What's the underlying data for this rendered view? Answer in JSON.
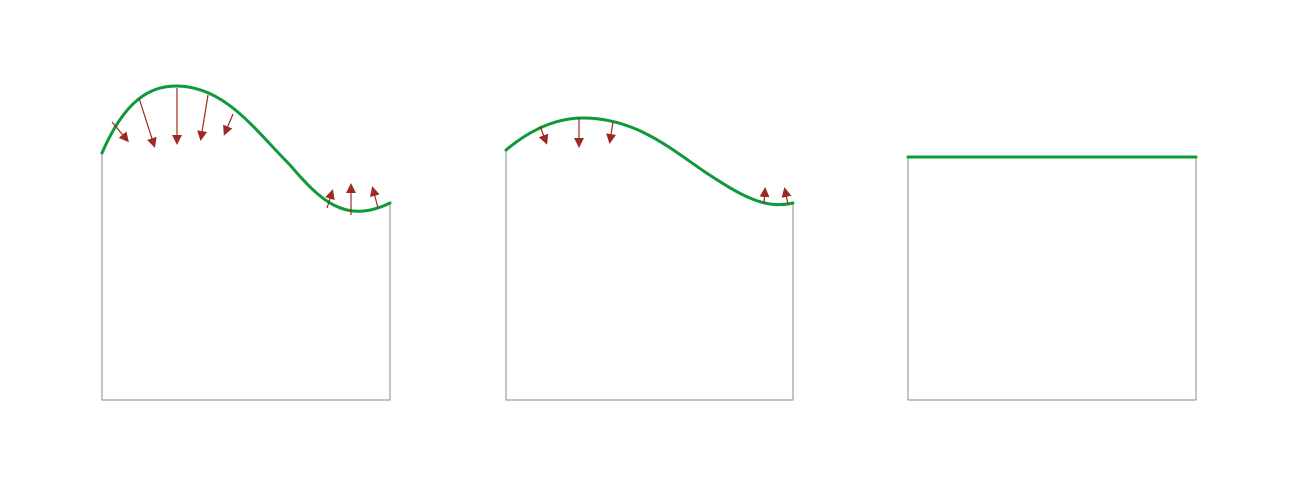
{
  "colors": {
    "background": "#ffffff",
    "outline": "#8a8a8a",
    "surface": "#0f9a3a",
    "arrow": "#9b2a20"
  },
  "panels": [
    {
      "id": "panel-1",
      "surface": "wavy-large",
      "arrows_down": 5,
      "arrows_up": 3
    },
    {
      "id": "panel-2",
      "surface": "wavy-small",
      "arrows_down": 3,
      "arrows_up": 2
    },
    {
      "id": "panel-3",
      "surface": "flat",
      "arrows_down": 0,
      "arrows_up": 0
    }
  ]
}
